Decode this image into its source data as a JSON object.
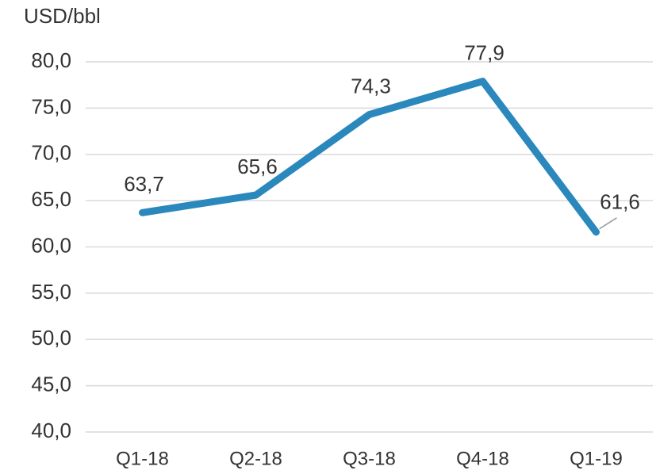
{
  "chart_data": {
    "type": "line",
    "y_axis_label": "USD/bbl",
    "categories": [
      "Q1-18",
      "Q2-18",
      "Q3-18",
      "Q4-18",
      "Q1-19"
    ],
    "values": [
      63.7,
      65.6,
      74.3,
      77.9,
      61.6
    ],
    "value_labels": [
      "63,7",
      "65,6",
      "74,3",
      "77,9",
      "61,6"
    ],
    "color": "#2a88bd",
    "ylim": [
      40,
      80
    ],
    "yticks": [
      {
        "value": 40,
        "label": "40,0"
      },
      {
        "value": 45,
        "label": "45,0"
      },
      {
        "value": 50,
        "label": "50,0"
      },
      {
        "value": 55,
        "label": "55,0"
      },
      {
        "value": 60,
        "label": "60,0"
      },
      {
        "value": 65,
        "label": "65,0"
      },
      {
        "value": 70,
        "label": "70,0"
      },
      {
        "value": 75,
        "label": "75,0"
      },
      {
        "value": 80,
        "label": "80,0"
      }
    ],
    "grid": true
  }
}
